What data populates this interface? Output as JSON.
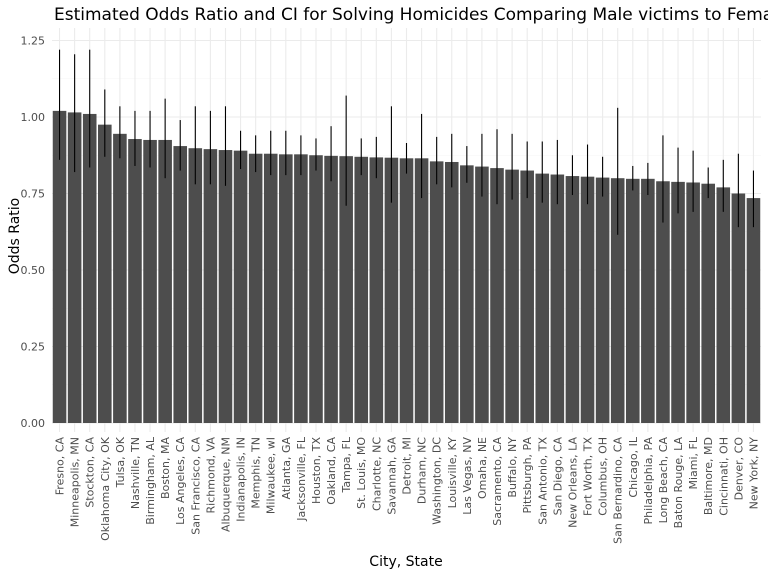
{
  "chart_data": {
    "type": "bar",
    "title": "Estimated Odds Ratio and CI for Solving Homicides Comparing Male victims to Female victi",
    "xlabel": "City, State",
    "ylabel": "Odds Ratio",
    "ylim": [
      0,
      1.3
    ],
    "yticks": [
      "0.00",
      "0.25",
      "0.50",
      "0.75",
      "1.00",
      "1.25"
    ],
    "grid": true,
    "categories": [
      "Fresno, CA",
      "Minneapolis, MN",
      "Stockton, CA",
      "Oklahoma City, OK",
      "Tulsa, OK",
      "Nashville, TN",
      "Birmingham, AL",
      "Boston, MA",
      "Los Angeles, CA",
      "San Francisco, CA",
      "Richmond, VA",
      "Albuquerque, NM",
      "Indianapolis, IN",
      "Memphis, TN",
      "Milwaukee, wI",
      "Atlanta, GA",
      "Jacksonville, FL",
      "Houston, TX",
      "Oakland, CA",
      "Tampa, FL",
      "St. Louis, MO",
      "Charlotte, NC",
      "Savannah, GA",
      "Detroit, MI",
      "Durham, NC",
      "Washington, DC",
      "Louisville, KY",
      "Las Vegas, NV",
      "Omaha, NE",
      "Sacramento, CA",
      "Buffalo, NY",
      "Pittsburgh, PA",
      "San Antonio, TX",
      "San Diego, CA",
      "New Orleans, LA",
      "Fort Worth, TX",
      "Columbus, OH",
      "San Bernardino, CA",
      "Chicago, IL",
      "Philadelphia, PA",
      "Long Beach, CA",
      "Baton Rouge, LA",
      "Miami, FL",
      "Baltimore, MD",
      "Cincinnati, OH",
      "Denver, CO",
      "New York, NY"
    ],
    "values": [
      1.02,
      1.015,
      1.01,
      0.975,
      0.945,
      0.928,
      0.925,
      0.925,
      0.905,
      0.898,
      0.895,
      0.892,
      0.89,
      0.88,
      0.88,
      0.878,
      0.878,
      0.875,
      0.873,
      0.872,
      0.87,
      0.868,
      0.867,
      0.865,
      0.865,
      0.855,
      0.853,
      0.842,
      0.838,
      0.833,
      0.828,
      0.825,
      0.815,
      0.812,
      0.807,
      0.805,
      0.802,
      0.8,
      0.798,
      0.798,
      0.79,
      0.788,
      0.786,
      0.782,
      0.77,
      0.75,
      0.735
    ],
    "ci_lower": [
      0.86,
      0.82,
      0.835,
      0.87,
      0.865,
      0.84,
      0.835,
      0.8,
      0.825,
      0.78,
      0.78,
      0.775,
      0.83,
      0.82,
      0.81,
      0.81,
      0.81,
      0.825,
      0.79,
      0.71,
      0.81,
      0.8,
      0.72,
      0.815,
      0.735,
      0.78,
      0.77,
      0.785,
      0.74,
      0.715,
      0.73,
      0.735,
      0.72,
      0.715,
      0.745,
      0.715,
      0.74,
      0.615,
      0.76,
      0.745,
      0.655,
      0.685,
      0.69,
      0.735,
      0.69,
      0.64,
      0.64
    ],
    "ci_upper": [
      1.22,
      1.205,
      1.22,
      1.09,
      1.035,
      1.02,
      1.02,
      1.06,
      0.99,
      1.035,
      1.02,
      1.035,
      0.955,
      0.94,
      0.955,
      0.955,
      0.94,
      0.93,
      0.97,
      1.07,
      0.93,
      0.935,
      1.035,
      0.915,
      1.01,
      0.935,
      0.945,
      0.905,
      0.945,
      0.96,
      0.945,
      0.92,
      0.92,
      0.925,
      0.875,
      0.91,
      0.87,
      1.03,
      0.84,
      0.85,
      0.94,
      0.9,
      0.89,
      0.835,
      0.86,
      0.88,
      0.825
    ],
    "bar_color": "#4d4d4d",
    "errorbar_color": "#000000",
    "grid_color": "#ebebeb"
  }
}
